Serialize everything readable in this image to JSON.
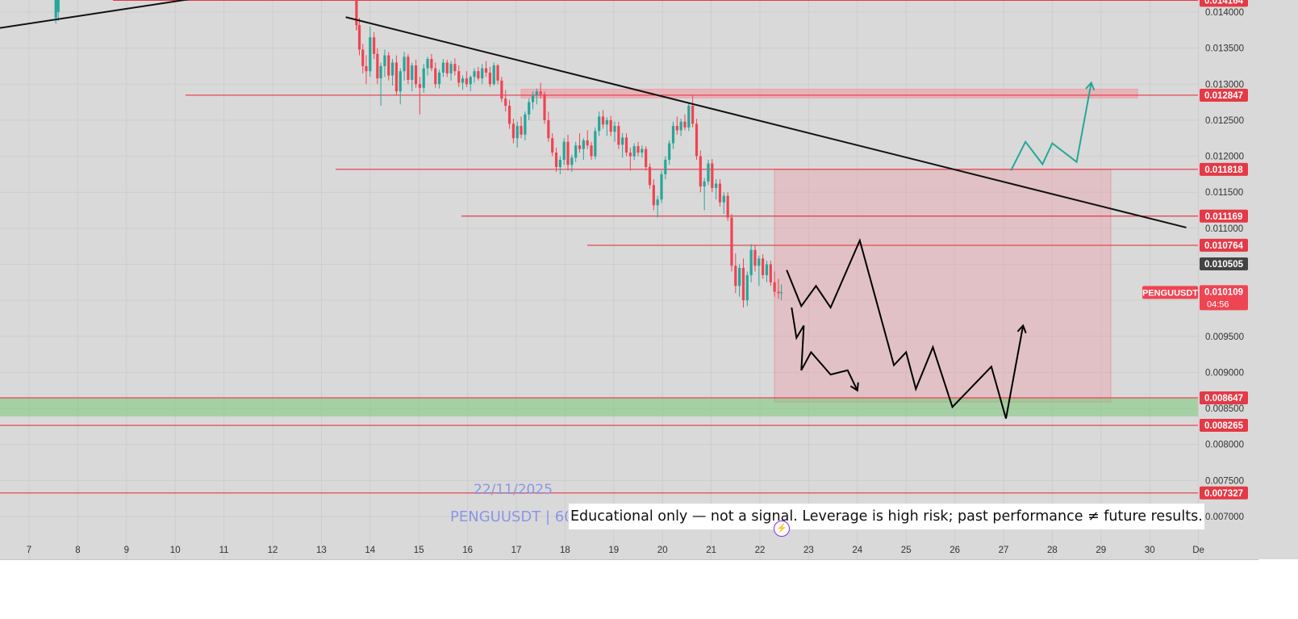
{
  "chart_data": {
    "type": "candlestick",
    "symbol": "PENGUUSDT",
    "watermark_date": "22/11/2025",
    "watermark_symbol": "PENGUUSDT | 60",
    "y_axis": {
      "ylim": [
        0.00676,
        0.01432
      ],
      "ticks": [
        "0.007000",
        "0.007500",
        "0.008000",
        "0.008500",
        "0.009000",
        "0.009500",
        "0.010000",
        "0.010500",
        "0.011000",
        "0.011500",
        "0.012000",
        "0.012500",
        "0.013000",
        "0.013500",
        "0.014000"
      ]
    },
    "x_axis": {
      "ticks": [
        "7",
        "8",
        "9",
        "10",
        "11",
        "12",
        "13",
        "14",
        "15",
        "16",
        "17",
        "18",
        "19",
        "20",
        "21",
        "22",
        "23",
        "24",
        "25",
        "26",
        "27",
        "28",
        "29",
        "30",
        "De"
      ]
    },
    "price_levels": [
      {
        "price": 0.014164,
        "label": "0.014164"
      },
      {
        "price": 0.012847,
        "label": "0.012847"
      },
      {
        "price": 0.011818,
        "label": "0.011818"
      },
      {
        "price": 0.011169,
        "label": "0.011169"
      },
      {
        "price": 0.010764,
        "label": "0.010764"
      },
      {
        "price": 0.008647,
        "label": "0.008647"
      },
      {
        "price": 0.008265,
        "label": "0.008265"
      },
      {
        "price": 0.007327,
        "label": "0.007327"
      }
    ],
    "marker_label": {
      "price": 0.010505,
      "label": "0.010505"
    },
    "last_price": {
      "price": 0.010109,
      "label": "0.010109",
      "countdown": "04:56",
      "symbol": "PENGUUSDT"
    },
    "resistance_zone": {
      "from_day": 17.1,
      "to_day": 29.75,
      "low": 0.01281,
      "high": 0.01293
    },
    "support_zone": {
      "low": 0.00839,
      "high": 0.00864
    },
    "target_box": {
      "from_day": 22.3,
      "to_day": 29.2,
      "low": 0.00859,
      "high": 0.01182
    },
    "trendlines": [
      {
        "from": [
          6.4,
          0.01378
        ],
        "to": [
          10.5,
          0.0142
        ]
      },
      {
        "from": [
          13.5,
          0.01393
        ],
        "to": [
          30.75,
          0.01101
        ]
      }
    ],
    "projections": [
      {
        "color": "#000000",
        "points": [
          [
            22.55,
            0.01042
          ],
          [
            22.85,
            0.00992
          ],
          [
            23.15,
            0.0102
          ],
          [
            23.45,
            0.0099
          ],
          [
            24.05,
            0.01083
          ],
          [
            24.75,
            0.0091
          ],
          [
            25.0,
            0.00928
          ],
          [
            25.2,
            0.00877
          ],
          [
            25.55,
            0.00935
          ],
          [
            25.95,
            0.00852
          ],
          [
            26.75,
            0.00908
          ],
          [
            27.05,
            0.00836
          ],
          [
            27.4,
            0.00965
          ]
        ]
      },
      {
        "color": "#000000",
        "points": [
          [
            22.65,
            0.0099
          ],
          [
            22.75,
            0.00948
          ],
          [
            22.9,
            0.00965
          ],
          [
            22.85,
            0.00903
          ],
          [
            23.05,
            0.00928
          ],
          [
            23.45,
            0.00897
          ],
          [
            23.8,
            0.00903
          ],
          [
            24.0,
            0.00875
          ]
        ]
      },
      {
        "color": "#26a69a",
        "points": [
          [
            27.15,
            0.0118
          ],
          [
            27.45,
            0.0122
          ],
          [
            27.8,
            0.01189
          ],
          [
            28.0,
            0.01218
          ],
          [
            28.5,
            0.01192
          ],
          [
            28.8,
            0.01302
          ]
        ]
      }
    ],
    "candles": [
      {
        "d": 7.55,
        "o": 0.01392,
        "h": 0.01428,
        "l": 0.01384,
        "c": 0.01418
      },
      {
        "d": 7.6,
        "o": 0.014,
        "h": 0.0143,
        "l": 0.01388,
        "c": 0.01424
      },
      {
        "d": 13.72,
        "o": 0.01428,
        "h": 0.01432,
        "l": 0.01375,
        "c": 0.01382
      },
      {
        "d": 13.78,
        "o": 0.01382,
        "h": 0.01392,
        "l": 0.0134,
        "c": 0.01348
      },
      {
        "d": 13.85,
        "o": 0.01348,
        "h": 0.01356,
        "l": 0.01315,
        "c": 0.01325
      },
      {
        "d": 13.92,
        "o": 0.01325,
        "h": 0.0134,
        "l": 0.013,
        "c": 0.01318
      },
      {
        "d": 14.0,
        "o": 0.01318,
        "h": 0.0138,
        "l": 0.0131,
        "c": 0.01365
      },
      {
        "d": 14.08,
        "o": 0.01365,
        "h": 0.01372,
        "l": 0.01335,
        "c": 0.01342
      },
      {
        "d": 14.15,
        "o": 0.01342,
        "h": 0.0135,
        "l": 0.013,
        "c": 0.01308
      },
      {
        "d": 14.22,
        "o": 0.01308,
        "h": 0.0133,
        "l": 0.0127,
        "c": 0.01325
      },
      {
        "d": 14.3,
        "o": 0.01325,
        "h": 0.01348,
        "l": 0.0131,
        "c": 0.0134
      },
      {
        "d": 14.38,
        "o": 0.0134,
        "h": 0.01345,
        "l": 0.01305,
        "c": 0.01312
      },
      {
        "d": 14.46,
        "o": 0.01312,
        "h": 0.01335,
        "l": 0.01298,
        "c": 0.0133
      },
      {
        "d": 14.54,
        "o": 0.0133,
        "h": 0.0134,
        "l": 0.01285,
        "c": 0.0129
      },
      {
        "d": 14.62,
        "o": 0.0129,
        "h": 0.01322,
        "l": 0.01272,
        "c": 0.01318
      },
      {
        "d": 14.7,
        "o": 0.01318,
        "h": 0.01345,
        "l": 0.01305,
        "c": 0.01338
      },
      {
        "d": 14.78,
        "o": 0.01338,
        "h": 0.01342,
        "l": 0.013,
        "c": 0.01306
      },
      {
        "d": 14.86,
        "o": 0.01306,
        "h": 0.0133,
        "l": 0.0129,
        "c": 0.01326
      },
      {
        "d": 14.94,
        "o": 0.01326,
        "h": 0.01334,
        "l": 0.01295,
        "c": 0.013
      },
      {
        "d": 15.02,
        "o": 0.013,
        "h": 0.0131,
        "l": 0.01258,
        "c": 0.01295
      },
      {
        "d": 15.1,
        "o": 0.01295,
        "h": 0.01328,
        "l": 0.01288,
        "c": 0.01322
      },
      {
        "d": 15.18,
        "o": 0.01322,
        "h": 0.01338,
        "l": 0.01312,
        "c": 0.01335
      },
      {
        "d": 15.26,
        "o": 0.01335,
        "h": 0.01342,
        "l": 0.01318,
        "c": 0.01322
      },
      {
        "d": 15.34,
        "o": 0.01322,
        "h": 0.0133,
        "l": 0.01295,
        "c": 0.013
      },
      {
        "d": 15.42,
        "o": 0.013,
        "h": 0.0132,
        "l": 0.01294,
        "c": 0.01316
      },
      {
        "d": 15.5,
        "o": 0.01316,
        "h": 0.01335,
        "l": 0.0131,
        "c": 0.0133
      },
      {
        "d": 15.58,
        "o": 0.0133,
        "h": 0.01334,
        "l": 0.0131,
        "c": 0.01315
      },
      {
        "d": 15.66,
        "o": 0.01315,
        "h": 0.01332,
        "l": 0.01305,
        "c": 0.01328
      },
      {
        "d": 15.74,
        "o": 0.01328,
        "h": 0.01336,
        "l": 0.01312,
        "c": 0.01318
      },
      {
        "d": 15.82,
        "o": 0.01318,
        "h": 0.01326,
        "l": 0.01296,
        "c": 0.01302
      },
      {
        "d": 15.9,
        "o": 0.01302,
        "h": 0.01312,
        "l": 0.01292,
        "c": 0.01308
      },
      {
        "d": 15.98,
        "o": 0.01308,
        "h": 0.01318,
        "l": 0.01296,
        "c": 0.013
      },
      {
        "d": 16.06,
        "o": 0.013,
        "h": 0.01312,
        "l": 0.0129,
        "c": 0.0131
      },
      {
        "d": 16.14,
        "o": 0.0131,
        "h": 0.01322,
        "l": 0.01302,
        "c": 0.01318
      },
      {
        "d": 16.22,
        "o": 0.01318,
        "h": 0.01324,
        "l": 0.01305,
        "c": 0.01308
      },
      {
        "d": 16.3,
        "o": 0.01308,
        "h": 0.01328,
        "l": 0.013,
        "c": 0.01322
      },
      {
        "d": 16.38,
        "o": 0.01322,
        "h": 0.01332,
        "l": 0.0131,
        "c": 0.01316
      },
      {
        "d": 16.46,
        "o": 0.01316,
        "h": 0.01324,
        "l": 0.01296,
        "c": 0.013
      },
      {
        "d": 16.54,
        "o": 0.013,
        "h": 0.0133,
        "l": 0.01298,
        "c": 0.01326
      },
      {
        "d": 16.62,
        "o": 0.01326,
        "h": 0.01328,
        "l": 0.013,
        "c": 0.01305
      },
      {
        "d": 16.7,
        "o": 0.01305,
        "h": 0.0131,
        "l": 0.01275,
        "c": 0.0128
      },
      {
        "d": 16.78,
        "o": 0.0128,
        "h": 0.01292,
        "l": 0.01262,
        "c": 0.0127
      },
      {
        "d": 16.86,
        "o": 0.0127,
        "h": 0.01278,
        "l": 0.01238,
        "c": 0.01245
      },
      {
        "d": 16.94,
        "o": 0.01245,
        "h": 0.01252,
        "l": 0.01218,
        "c": 0.01225
      },
      {
        "d": 17.02,
        "o": 0.01225,
        "h": 0.01248,
        "l": 0.01212,
        "c": 0.01242
      },
      {
        "d": 17.1,
        "o": 0.01242,
        "h": 0.01255,
        "l": 0.01225,
        "c": 0.0123
      },
      {
        "d": 17.18,
        "o": 0.0123,
        "h": 0.01262,
        "l": 0.01222,
        "c": 0.01258
      },
      {
        "d": 17.26,
        "o": 0.01258,
        "h": 0.0128,
        "l": 0.0125,
        "c": 0.01275
      },
      {
        "d": 17.34,
        "o": 0.01275,
        "h": 0.0129,
        "l": 0.01265,
        "c": 0.01285
      },
      {
        "d": 17.42,
        "o": 0.01285,
        "h": 0.01294,
        "l": 0.01272,
        "c": 0.0129
      },
      {
        "d": 17.5,
        "o": 0.0129,
        "h": 0.01302,
        "l": 0.0128,
        "c": 0.01286
      },
      {
        "d": 17.58,
        "o": 0.01286,
        "h": 0.0129,
        "l": 0.01245,
        "c": 0.0125
      },
      {
        "d": 17.66,
        "o": 0.0125,
        "h": 0.01262,
        "l": 0.0122,
        "c": 0.01225
      },
      {
        "d": 17.74,
        "o": 0.01225,
        "h": 0.01232,
        "l": 0.012,
        "c": 0.01205
      },
      {
        "d": 17.82,
        "o": 0.01205,
        "h": 0.01212,
        "l": 0.01178,
        "c": 0.01185
      },
      {
        "d": 17.9,
        "o": 0.01185,
        "h": 0.012,
        "l": 0.01175,
        "c": 0.01195
      },
      {
        "d": 17.98,
        "o": 0.01195,
        "h": 0.01225,
        "l": 0.01188,
        "c": 0.0122
      },
      {
        "d": 18.06,
        "o": 0.0122,
        "h": 0.0123,
        "l": 0.0118,
        "c": 0.01188
      },
      {
        "d": 18.14,
        "o": 0.01188,
        "h": 0.01202,
        "l": 0.01178,
        "c": 0.01198
      },
      {
        "d": 18.22,
        "o": 0.01198,
        "h": 0.0122,
        "l": 0.01192,
        "c": 0.01215
      },
      {
        "d": 18.3,
        "o": 0.01215,
        "h": 0.01232,
        "l": 0.01205,
        "c": 0.0121
      },
      {
        "d": 18.38,
        "o": 0.0121,
        "h": 0.01225,
        "l": 0.01195,
        "c": 0.01222
      },
      {
        "d": 18.46,
        "o": 0.01222,
        "h": 0.01236,
        "l": 0.0121,
        "c": 0.01215
      },
      {
        "d": 18.54,
        "o": 0.01215,
        "h": 0.0122,
        "l": 0.01195,
        "c": 0.012
      },
      {
        "d": 18.62,
        "o": 0.012,
        "h": 0.0124,
        "l": 0.01196,
        "c": 0.01235
      },
      {
        "d": 18.7,
        "o": 0.01235,
        "h": 0.01262,
        "l": 0.01228,
        "c": 0.01255
      },
      {
        "d": 18.78,
        "o": 0.01255,
        "h": 0.01264,
        "l": 0.01238,
        "c": 0.01244
      },
      {
        "d": 18.86,
        "o": 0.01244,
        "h": 0.01254,
        "l": 0.01228,
        "c": 0.0125
      },
      {
        "d": 18.94,
        "o": 0.0125,
        "h": 0.01256,
        "l": 0.01228,
        "c": 0.01234
      },
      {
        "d": 19.02,
        "o": 0.01234,
        "h": 0.01248,
        "l": 0.0122,
        "c": 0.01242
      },
      {
        "d": 19.1,
        "o": 0.01242,
        "h": 0.01248,
        "l": 0.0121,
        "c": 0.01216
      },
      {
        "d": 19.18,
        "o": 0.01216,
        "h": 0.01232,
        "l": 0.01198,
        "c": 0.01226
      },
      {
        "d": 19.26,
        "o": 0.01226,
        "h": 0.01232,
        "l": 0.012,
        "c": 0.01205
      },
      {
        "d": 19.34,
        "o": 0.01205,
        "h": 0.01212,
        "l": 0.0118,
        "c": 0.012
      },
      {
        "d": 19.42,
        "o": 0.012,
        "h": 0.01218,
        "l": 0.01195,
        "c": 0.01214
      },
      {
        "d": 19.5,
        "o": 0.01214,
        "h": 0.0122,
        "l": 0.012,
        "c": 0.01205
      },
      {
        "d": 19.58,
        "o": 0.01205,
        "h": 0.01215,
        "l": 0.01198,
        "c": 0.0121
      },
      {
        "d": 19.66,
        "o": 0.0121,
        "h": 0.01214,
        "l": 0.0118,
        "c": 0.01185
      },
      {
        "d": 19.74,
        "o": 0.01185,
        "h": 0.0119,
        "l": 0.01155,
        "c": 0.0116
      },
      {
        "d": 19.82,
        "o": 0.0116,
        "h": 0.01168,
        "l": 0.01125,
        "c": 0.01132
      },
      {
        "d": 19.9,
        "o": 0.01132,
        "h": 0.01145,
        "l": 0.01115,
        "c": 0.0114
      },
      {
        "d": 19.98,
        "o": 0.0114,
        "h": 0.0118,
        "l": 0.01135,
        "c": 0.01175
      },
      {
        "d": 20.06,
        "o": 0.01175,
        "h": 0.012,
        "l": 0.01168,
        "c": 0.01195
      },
      {
        "d": 20.14,
        "o": 0.01195,
        "h": 0.01222,
        "l": 0.01188,
        "c": 0.01218
      },
      {
        "d": 20.22,
        "o": 0.01218,
        "h": 0.01248,
        "l": 0.0121,
        "c": 0.01242
      },
      {
        "d": 20.3,
        "o": 0.01242,
        "h": 0.01255,
        "l": 0.0123,
        "c": 0.01236
      },
      {
        "d": 20.38,
        "o": 0.01236,
        "h": 0.01252,
        "l": 0.01228,
        "c": 0.01248
      },
      {
        "d": 20.46,
        "o": 0.01248,
        "h": 0.01258,
        "l": 0.01236,
        "c": 0.0124
      },
      {
        "d": 20.54,
        "o": 0.0124,
        "h": 0.01275,
        "l": 0.01235,
        "c": 0.0127
      },
      {
        "d": 20.62,
        "o": 0.0127,
        "h": 0.01285,
        "l": 0.0124,
        "c": 0.01245
      },
      {
        "d": 20.7,
        "o": 0.01245,
        "h": 0.01252,
        "l": 0.01195,
        "c": 0.012
      },
      {
        "d": 20.78,
        "o": 0.012,
        "h": 0.01208,
        "l": 0.0115,
        "c": 0.01158
      },
      {
        "d": 20.86,
        "o": 0.01158,
        "h": 0.0117,
        "l": 0.01125,
        "c": 0.01165
      },
      {
        "d": 20.94,
        "o": 0.01165,
        "h": 0.01195,
        "l": 0.0116,
        "c": 0.0119
      },
      {
        "d": 21.02,
        "o": 0.0119,
        "h": 0.01196,
        "l": 0.0115,
        "c": 0.01156
      },
      {
        "d": 21.1,
        "o": 0.01156,
        "h": 0.01168,
        "l": 0.0114,
        "c": 0.01162
      },
      {
        "d": 21.18,
        "o": 0.01162,
        "h": 0.01168,
        "l": 0.0113,
        "c": 0.01136
      },
      {
        "d": 21.26,
        "o": 0.01136,
        "h": 0.0115,
        "l": 0.0112,
        "c": 0.01145
      },
      {
        "d": 21.34,
        "o": 0.01145,
        "h": 0.0115,
        "l": 0.0111,
        "c": 0.01115
      },
      {
        "d": 21.42,
        "o": 0.01115,
        "h": 0.0112,
        "l": 0.0104,
        "c": 0.01048
      },
      {
        "d": 21.5,
        "o": 0.01048,
        "h": 0.01065,
        "l": 0.0101,
        "c": 0.0102
      },
      {
        "d": 21.58,
        "o": 0.0102,
        "h": 0.0105,
        "l": 0.01005,
        "c": 0.01045
      },
      {
        "d": 21.66,
        "o": 0.01045,
        "h": 0.01058,
        "l": 0.0099,
        "c": 0.01
      },
      {
        "d": 21.74,
        "o": 0.01,
        "h": 0.0104,
        "l": 0.00992,
        "c": 0.01035
      },
      {
        "d": 21.82,
        "o": 0.01035,
        "h": 0.01078,
        "l": 0.01025,
        "c": 0.0107
      },
      {
        "d": 21.9,
        "o": 0.0107,
        "h": 0.01076,
        "l": 0.0104,
        "c": 0.01048
      },
      {
        "d": 21.98,
        "o": 0.01048,
        "h": 0.01062,
        "l": 0.0102,
        "c": 0.01058
      },
      {
        "d": 22.06,
        "o": 0.01058,
        "h": 0.01064,
        "l": 0.0103,
        "c": 0.01035
      },
      {
        "d": 22.14,
        "o": 0.01035,
        "h": 0.01055,
        "l": 0.01025,
        "c": 0.0105
      },
      {
        "d": 22.22,
        "o": 0.0105,
        "h": 0.01055,
        "l": 0.0102,
        "c": 0.01025
      },
      {
        "d": 22.3,
        "o": 0.01025,
        "h": 0.0104,
        "l": 0.01005,
        "c": 0.01012
      },
      {
        "d": 22.38,
        "o": 0.01012,
        "h": 0.0103,
        "l": 0.01002,
        "c": 0.0101
      },
      {
        "d": 22.44,
        "o": 0.0101,
        "h": 0.01022,
        "l": 0.01,
        "c": 0.01011
      }
    ],
    "disclaimer": "Educational only — not a signal. Leverage is high risk; past performance ≠ future results."
  }
}
